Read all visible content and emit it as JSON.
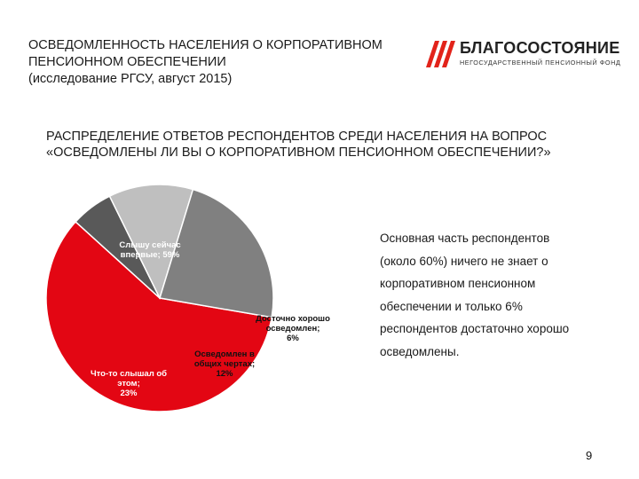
{
  "header": {
    "title_lines": [
      "ОСВЕДОМЛЕННОСТЬ НАСЕЛЕНИЯ О КОРПОРАТИВНОМ",
      "ПЕНСИОННОМ ОБЕСПЕЧЕНИИ",
      "(исследование РГСУ, август 2015)"
    ]
  },
  "logo": {
    "name": "БЛАГОСОСТОЯНИЕ",
    "subtitle": "НЕГОСУДАРСТВЕННЫЙ ПЕНСИОННЫЙ ФОНД",
    "color": "#e2231a"
  },
  "subtitle_lines": [
    "РАСПРЕДЕЛЕНИЕ ОТВЕТОВ РЕСПОНДЕНТОВ СРЕДИ НАСЕЛЕНИЯ НА ВОПРОС",
    "«ОСВЕДОМЛЕНЫ ЛИ ВЫ О КОРПОРАТИВНОМ ПЕНСИОННОМ ОБЕСПЕЧЕНИИ?»"
  ],
  "chart_data": {
    "type": "pie",
    "slices": [
      {
        "label": [
          "Слышу сейчас",
          "впервые; 59%"
        ],
        "value": 59,
        "color": "#e30613",
        "text_color": "#ffffff"
      },
      {
        "label": [
          "Досточно хорошо",
          "осведомлен;",
          "6%"
        ],
        "value": 6,
        "color": "#595959",
        "text_color": "#111111"
      },
      {
        "label": [
          "Осведомлен в",
          "общих чертах;",
          "12%"
        ],
        "value": 12,
        "color": "#bfbfbf",
        "text_color": "#111111"
      },
      {
        "label": [
          "Что-то слышал об",
          "этом;",
          "23%"
        ],
        "value": 23,
        "color": "#808080",
        "text_color": "#ffffff"
      }
    ]
  },
  "note_lines": [
    "Основная часть респондентов",
    "(около 60%) ничего не знает о",
    "корпоративном пенсионном",
    "обеспечении и только 6%",
    "респондентов достаточно хорошо",
    "осведомлены."
  ],
  "page_number": "9"
}
